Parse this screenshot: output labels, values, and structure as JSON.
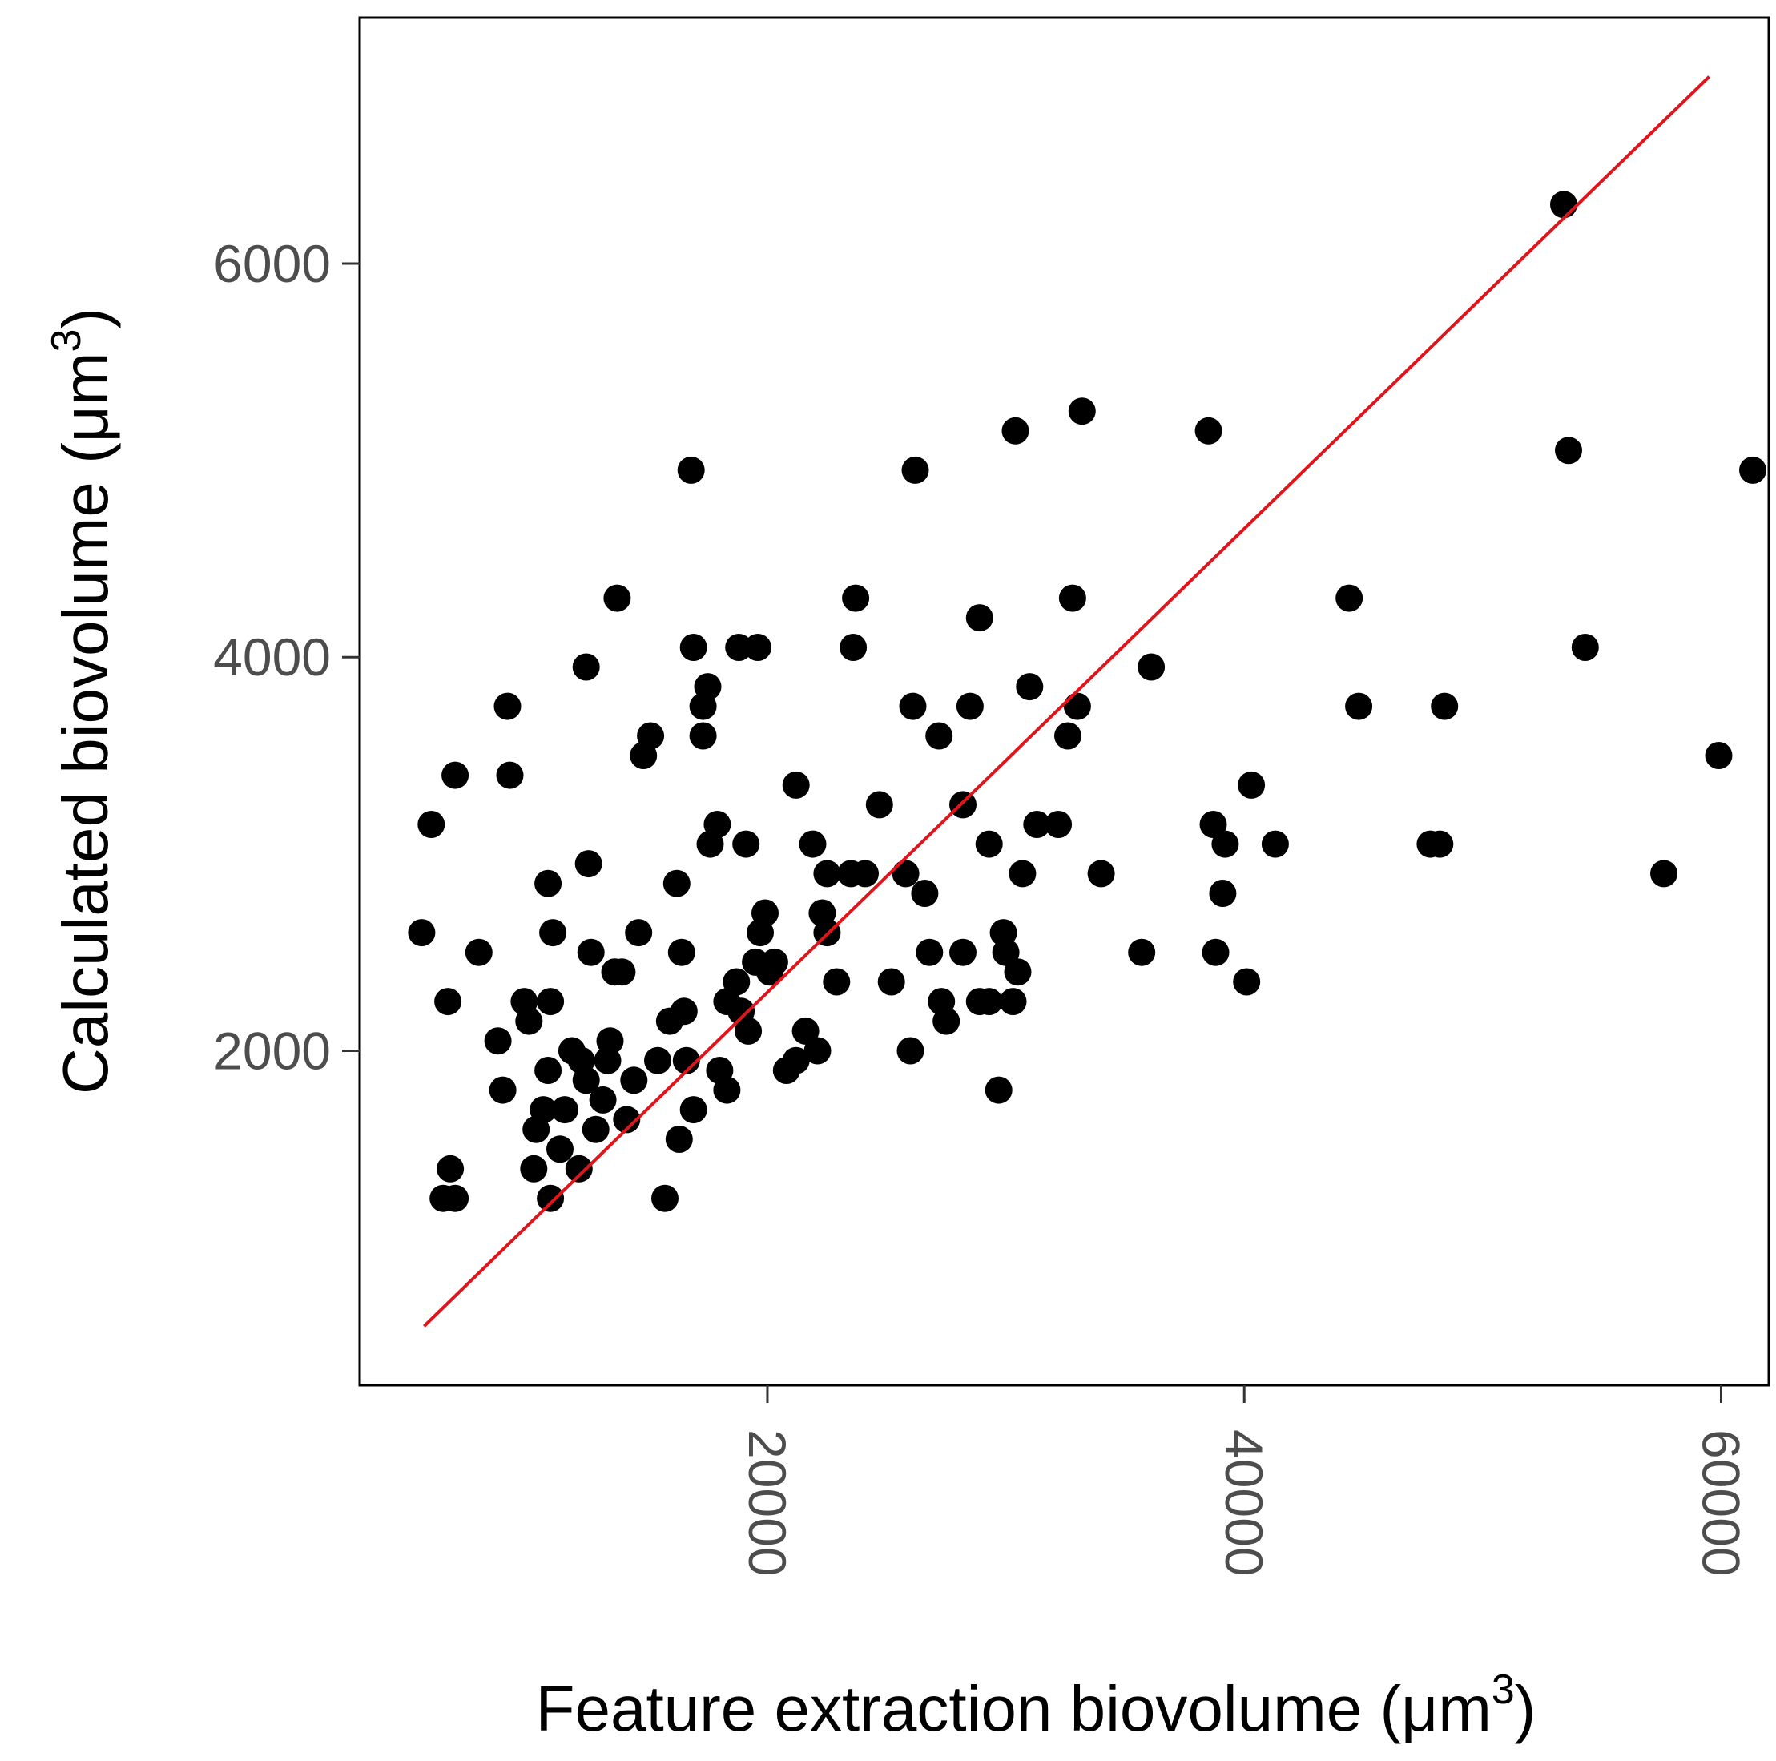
{
  "chart_data": {
    "type": "scatter",
    "xlabel": "Feature extraction biovolume (μm",
    "xlabel_sup": "3",
    "xlabel_close": ")",
    "ylabel": "Calculated biovolume (μm",
    "ylabel_sup": "3",
    "ylabel_close": ")",
    "xlim": [
      2900,
      62000
    ],
    "ylim": [
      300,
      7250
    ],
    "x_ticks": [
      20000,
      40000,
      60000
    ],
    "x_tick_labels": [
      "20000",
      "40000",
      "60000"
    ],
    "y_ticks": [
      2000,
      4000,
      6000
    ],
    "y_tick_labels": [
      "2000",
      "4000",
      "6000"
    ],
    "grid": false,
    "point_color": "#000000",
    "fit_color": "#e0141b",
    "fit_line": {
      "x": [
        5600,
        59500
      ],
      "y": [
        600,
        6950
      ]
    },
    "points": [
      {
        "x": 5500,
        "y": 2600
      },
      {
        "x": 5900,
        "y": 3150
      },
      {
        "x": 6400,
        "y": 1250
      },
      {
        "x": 6700,
        "y": 1400
      },
      {
        "x": 6900,
        "y": 1250
      },
      {
        "x": 6600,
        "y": 2250
      },
      {
        "x": 6900,
        "y": 3400
      },
      {
        "x": 7900,
        "y": 2500
      },
      {
        "x": 8700,
        "y": 2050
      },
      {
        "x": 8900,
        "y": 1800
      },
      {
        "x": 9200,
        "y": 3400
      },
      {
        "x": 9100,
        "y": 3750
      },
      {
        "x": 9800,
        "y": 2250
      },
      {
        "x": 10000,
        "y": 2150
      },
      {
        "x": 10200,
        "y": 1400
      },
      {
        "x": 10300,
        "y": 1600
      },
      {
        "x": 10600,
        "y": 1700
      },
      {
        "x": 10800,
        "y": 1900
      },
      {
        "x": 10900,
        "y": 2250
      },
      {
        "x": 10800,
        "y": 2850
      },
      {
        "x": 11000,
        "y": 2600
      },
      {
        "x": 10900,
        "y": 1250
      },
      {
        "x": 11300,
        "y": 1500
      },
      {
        "x": 11500,
        "y": 1700
      },
      {
        "x": 11800,
        "y": 2000
      },
      {
        "x": 12200,
        "y": 1950
      },
      {
        "x": 12100,
        "y": 1400
      },
      {
        "x": 12400,
        "y": 1850
      },
      {
        "x": 12600,
        "y": 2500
      },
      {
        "x": 12500,
        "y": 2950
      },
      {
        "x": 12400,
        "y": 3950
      },
      {
        "x": 12800,
        "y": 1600
      },
      {
        "x": 13100,
        "y": 1750
      },
      {
        "x": 13300,
        "y": 1950
      },
      {
        "x": 13400,
        "y": 2050
      },
      {
        "x": 13600,
        "y": 2400
      },
      {
        "x": 13900,
        "y": 2400
      },
      {
        "x": 13700,
        "y": 4300
      },
      {
        "x": 14100,
        "y": 1650
      },
      {
        "x": 14400,
        "y": 1850
      },
      {
        "x": 14600,
        "y": 2600
      },
      {
        "x": 14800,
        "y": 3500
      },
      {
        "x": 15100,
        "y": 3600
      },
      {
        "x": 15400,
        "y": 1950
      },
      {
        "x": 15700,
        "y": 1250
      },
      {
        "x": 15900,
        "y": 2150
      },
      {
        "x": 16200,
        "y": 2850
      },
      {
        "x": 16400,
        "y": 2500
      },
      {
        "x": 16500,
        "y": 2200
      },
      {
        "x": 16300,
        "y": 1550
      },
      {
        "x": 16600,
        "y": 1950
      },
      {
        "x": 16900,
        "y": 1700
      },
      {
        "x": 16800,
        "y": 4950
      },
      {
        "x": 16900,
        "y": 4050
      },
      {
        "x": 17300,
        "y": 3600
      },
      {
        "x": 17300,
        "y": 3750
      },
      {
        "x": 17500,
        "y": 3850
      },
      {
        "x": 17600,
        "y": 3050
      },
      {
        "x": 17900,
        "y": 3150
      },
      {
        "x": 18000,
        "y": 1900
      },
      {
        "x": 18300,
        "y": 1800
      },
      {
        "x": 18300,
        "y": 2250
      },
      {
        "x": 18700,
        "y": 2350
      },
      {
        "x": 18900,
        "y": 2200
      },
      {
        "x": 18800,
        "y": 4050
      },
      {
        "x": 19100,
        "y": 3050
      },
      {
        "x": 19200,
        "y": 2100
      },
      {
        "x": 19500,
        "y": 2450
      },
      {
        "x": 19700,
        "y": 2600
      },
      {
        "x": 19900,
        "y": 2700
      },
      {
        "x": 20100,
        "y": 2400
      },
      {
        "x": 20300,
        "y": 2450
      },
      {
        "x": 19600,
        "y": 4050
      },
      {
        "x": 20800,
        "y": 1900
      },
      {
        "x": 21200,
        "y": 1950
      },
      {
        "x": 21600,
        "y": 2100
      },
      {
        "x": 21200,
        "y": 3350
      },
      {
        "x": 21900,
        "y": 3050
      },
      {
        "x": 22100,
        "y": 2000
      },
      {
        "x": 22300,
        "y": 2700
      },
      {
        "x": 22500,
        "y": 2900
      },
      {
        "x": 22500,
        "y": 2600
      },
      {
        "x": 22900,
        "y": 2350
      },
      {
        "x": 23500,
        "y": 2900
      },
      {
        "x": 23600,
        "y": 4050
      },
      {
        "x": 23700,
        "y": 4300
      },
      {
        "x": 24100,
        "y": 2900
      },
      {
        "x": 24700,
        "y": 3250
      },
      {
        "x": 25200,
        "y": 2350
      },
      {
        "x": 25800,
        "y": 2900
      },
      {
        "x": 26000,
        "y": 2000
      },
      {
        "x": 26100,
        "y": 3750
      },
      {
        "x": 26200,
        "y": 4950
      },
      {
        "x": 26600,
        "y": 2800
      },
      {
        "x": 26800,
        "y": 2500
      },
      {
        "x": 27200,
        "y": 3600
      },
      {
        "x": 27300,
        "y": 2250
      },
      {
        "x": 27500,
        "y": 2150
      },
      {
        "x": 28200,
        "y": 3250
      },
      {
        "x": 28200,
        "y": 2500
      },
      {
        "x": 28500,
        "y": 3750
      },
      {
        "x": 28900,
        "y": 4200
      },
      {
        "x": 28900,
        "y": 2250
      },
      {
        "x": 29300,
        "y": 2250
      },
      {
        "x": 29300,
        "y": 3050
      },
      {
        "x": 29700,
        "y": 1800
      },
      {
        "x": 29900,
        "y": 2600
      },
      {
        "x": 30000,
        "y": 2500
      },
      {
        "x": 30300,
        "y": 2250
      },
      {
        "x": 30500,
        "y": 2400
      },
      {
        "x": 30400,
        "y": 5150
      },
      {
        "x": 30700,
        "y": 2900
      },
      {
        "x": 31000,
        "y": 3850
      },
      {
        "x": 31300,
        "y": 3150
      },
      {
        "x": 32200,
        "y": 3150
      },
      {
        "x": 32600,
        "y": 3600
      },
      {
        "x": 32800,
        "y": 4300
      },
      {
        "x": 33000,
        "y": 3750
      },
      {
        "x": 33200,
        "y": 5250
      },
      {
        "x": 34000,
        "y": 2900
      },
      {
        "x": 35700,
        "y": 2500
      },
      {
        "x": 36100,
        "y": 3950
      },
      {
        "x": 38500,
        "y": 5150
      },
      {
        "x": 38700,
        "y": 3150
      },
      {
        "x": 38800,
        "y": 2500
      },
      {
        "x": 39100,
        "y": 2800
      },
      {
        "x": 39200,
        "y": 3050
      },
      {
        "x": 40100,
        "y": 2350
      },
      {
        "x": 40300,
        "y": 3350
      },
      {
        "x": 41300,
        "y": 3050
      },
      {
        "x": 44400,
        "y": 4300
      },
      {
        "x": 44800,
        "y": 3750
      },
      {
        "x": 47800,
        "y": 3050
      },
      {
        "x": 48200,
        "y": 3050
      },
      {
        "x": 48400,
        "y": 3750
      },
      {
        "x": 53400,
        "y": 6300
      },
      {
        "x": 53600,
        "y": 5050
      },
      {
        "x": 54300,
        "y": 4050
      },
      {
        "x": 57600,
        "y": 2900
      },
      {
        "x": 59900,
        "y": 3500
      },
      {
        "x": 63600,
        "y": 4950
      }
    ]
  }
}
